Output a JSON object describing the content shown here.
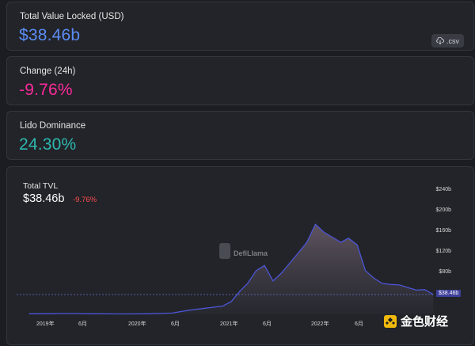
{
  "cards": {
    "tvl": {
      "label": "Total Value Locked (USD)",
      "value": "$38.46b",
      "color": "#5c8cf5"
    },
    "change": {
      "label": "Change (24h)",
      "value": "-9.76%",
      "color": "#ff2a9b"
    },
    "dominance": {
      "label": "Lido Dominance",
      "value": "24.30%",
      "color": "#2fb8b0"
    }
  },
  "csv_button": {
    "label": ".csv",
    "icon": "download-cloud-icon"
  },
  "chart_panel": {
    "title": "Total TVL",
    "value": "$38.46b",
    "change": "-9.76%",
    "current_tag": "$38.46b",
    "watermark": "DefiLlama",
    "brand": "金色财经"
  },
  "chart_data": {
    "type": "area",
    "title": "Total TVL",
    "xlabel": "",
    "ylabel": "",
    "ylim": [
      0,
      240
    ],
    "y_unit": "b USD",
    "y_ticks": [
      "$240b",
      "$200b",
      "$160b",
      "$120b",
      "$80b"
    ],
    "x_ticks": [
      "2019年",
      "6月",
      "2020年",
      "6月",
      "2021年",
      "6月",
      "2022年",
      "6月"
    ],
    "grid": false,
    "series": [
      {
        "color": "#4c55d6",
        "x": [
          "2019-01",
          "2019-03",
          "2019-06",
          "2019-09",
          "2019-12",
          "2020-03",
          "2020-06",
          "2020-08",
          "2020-10",
          "2020-12",
          "2021-01",
          "2021-02",
          "2021-03",
          "2021-04",
          "2021-05",
          "2021-06",
          "2021-07",
          "2021-08",
          "2021-09",
          "2021-10",
          "2021-11",
          "2021-12",
          "2022-01",
          "2022-02",
          "2022-03",
          "2022-04",
          "2022-05",
          "2022-06",
          "2022-07",
          "2022-08",
          "2022-09",
          "2022-10",
          "2022-11",
          "2022-12",
          "2023-01"
        ],
        "values": [
          1,
          1.2,
          1.5,
          1,
          0.8,
          1,
          2.5,
          8,
          12,
          16,
          25,
          45,
          60,
          85,
          95,
          65,
          80,
          100,
          120,
          140,
          175,
          160,
          150,
          140,
          148,
          135,
          85,
          70,
          60,
          58,
          57,
          52,
          47,
          48,
          38.46
        ]
      }
    ]
  }
}
